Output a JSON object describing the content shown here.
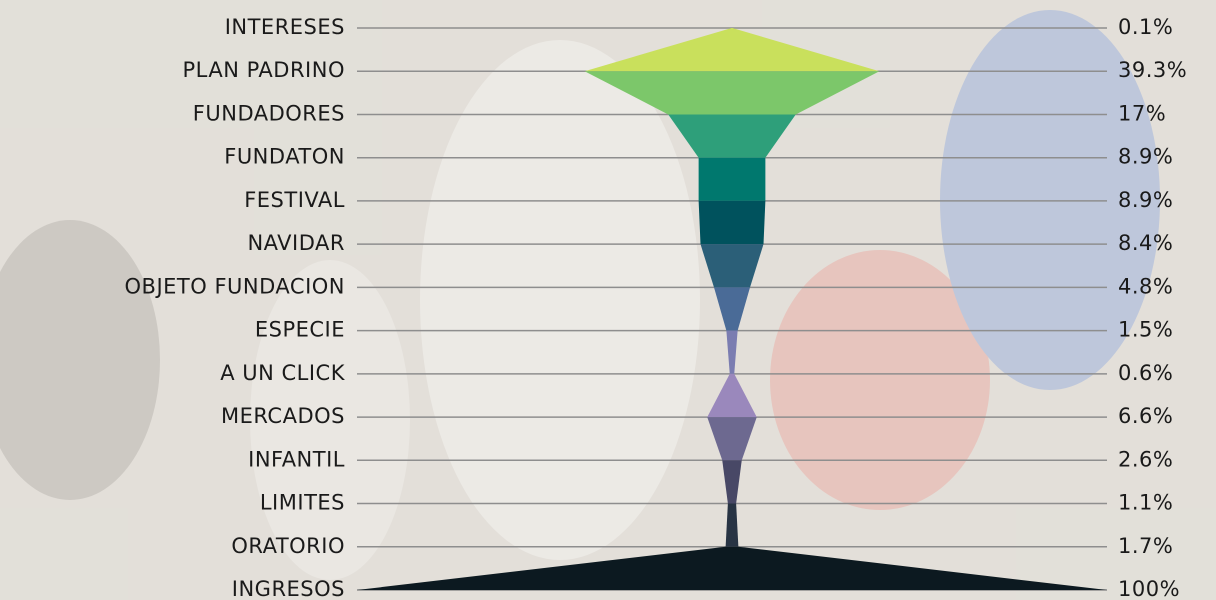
{
  "chart_data": {
    "type": "funnel",
    "categories": [
      "INTERESES",
      "PLAN PADRINO",
      "FUNDADORES",
      "FUNDATON",
      "FESTIVAL",
      "NAVIDAR",
      "OBJETO FUNDACION",
      "ESPECIE",
      "A UN CLICK",
      "MERCADOS",
      "INFANTIL",
      "LIMITES",
      "ORATORIO",
      "INGRESOS"
    ],
    "values": [
      0.1,
      39.3,
      17,
      8.9,
      8.9,
      8.4,
      4.8,
      1.5,
      0.6,
      6.6,
      2.6,
      1.1,
      1.7,
      100
    ],
    "value_labels": [
      "0.1%",
      "39.3%",
      "17%",
      "8.9%",
      "8.9%",
      "8.4%",
      "4.8%",
      "1.5%",
      "0.6%",
      "6.6%",
      "2.6%",
      "1.1%",
      "1.7%",
      "100%"
    ],
    "colors": [
      "#c9e05c",
      "#7cc76a",
      "#2e9f7a",
      "#00786e",
      "#00525d",
      "#2b5f78",
      "#4a6b97",
      "#7b7db1",
      "#9a88bc",
      "#6d6990",
      "#484866",
      "#283444",
      "#0c1920"
    ]
  }
}
